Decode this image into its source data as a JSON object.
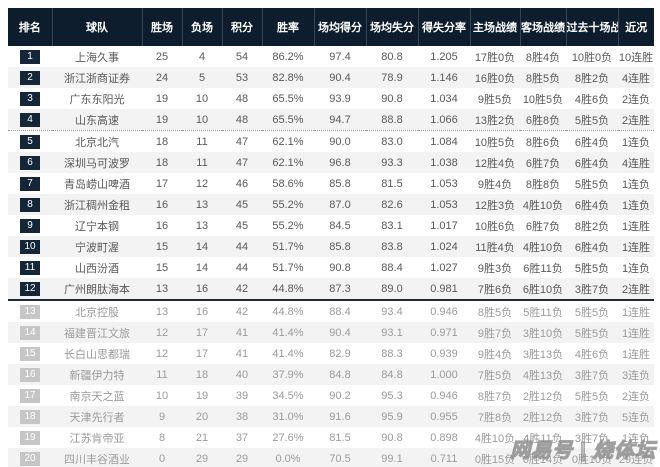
{
  "watermark": "网易号 | 烧体坛",
  "colors": {
    "header_bg": "#0d1d2d",
    "rank_badge_top": "#142638",
    "rank_badge_lower": "#c6c6c6",
    "row_alt_bg": "#f3f3f3",
    "divider_solid": "#1c2b3a"
  },
  "table": {
    "dotted_divider_after_rank": 4,
    "solid_divider_after_rank": 12,
    "columns": [
      {
        "key": "rank",
        "label": "排名"
      },
      {
        "key": "team",
        "label": "球队"
      },
      {
        "key": "wins",
        "label": "胜场"
      },
      {
        "key": "losses",
        "label": "负场"
      },
      {
        "key": "points",
        "label": "积分"
      },
      {
        "key": "win_rate",
        "label": "胜率"
      },
      {
        "key": "avg_points_for",
        "label": "场均得分"
      },
      {
        "key": "avg_points_against",
        "label": "场均失分"
      },
      {
        "key": "point_ratio",
        "label": "得失分率"
      },
      {
        "key": "home_record",
        "label": "主场战绩"
      },
      {
        "key": "away_record",
        "label": "客场战绩"
      },
      {
        "key": "last10_record",
        "label": "过去十场战绩"
      },
      {
        "key": "streak",
        "label": "近况"
      }
    ],
    "rows": [
      {
        "rank": 1,
        "tier": "top",
        "team": "上海久事",
        "wins": 25,
        "losses": 4,
        "points": 54,
        "win_rate": "86.2%",
        "avg_points_for": "97.4",
        "avg_points_against": "80.8",
        "point_ratio": "1.205",
        "home_record": "17胜0负",
        "away_record": "8胜4负",
        "last10_record": "10胜0负",
        "streak": "10连胜"
      },
      {
        "rank": 2,
        "tier": "top",
        "team": "浙江浙商证券",
        "wins": 24,
        "losses": 5,
        "points": 53,
        "win_rate": "82.8%",
        "avg_points_for": "90.4",
        "avg_points_against": "78.9",
        "point_ratio": "1.146",
        "home_record": "16胜0负",
        "away_record": "8胜5负",
        "last10_record": "8胜2负",
        "streak": "4连胜"
      },
      {
        "rank": 3,
        "tier": "top",
        "team": "广东东阳光",
        "wins": 19,
        "losses": 10,
        "points": 48,
        "win_rate": "65.5%",
        "avg_points_for": "93.9",
        "avg_points_against": "90.8",
        "point_ratio": "1.034",
        "home_record": "9胜5负",
        "away_record": "10胜5负",
        "last10_record": "4胜6负",
        "streak": "2连负"
      },
      {
        "rank": 4,
        "tier": "top",
        "team": "山东高速",
        "wins": 19,
        "losses": 10,
        "points": 48,
        "win_rate": "65.5%",
        "avg_points_for": "94.7",
        "avg_points_against": "88.8",
        "point_ratio": "1.066",
        "home_record": "13胜2负",
        "away_record": "6胜8负",
        "last10_record": "5胜5负",
        "streak": "2连胜"
      },
      {
        "rank": 5,
        "tier": "top",
        "team": "北京北汽",
        "wins": 18,
        "losses": 11,
        "points": 47,
        "win_rate": "62.1%",
        "avg_points_for": "90.0",
        "avg_points_against": "83.0",
        "point_ratio": "1.084",
        "home_record": "10胜5负",
        "away_record": "8胜6负",
        "last10_record": "6胜4负",
        "streak": "1连负"
      },
      {
        "rank": 6,
        "tier": "top",
        "team": "深圳马可波罗",
        "wins": 18,
        "losses": 11,
        "points": 47,
        "win_rate": "62.1%",
        "avg_points_for": "96.8",
        "avg_points_against": "93.3",
        "point_ratio": "1.038",
        "home_record": "12胜4负",
        "away_record": "6胜7负",
        "last10_record": "6胜4负",
        "streak": "4连胜"
      },
      {
        "rank": 7,
        "tier": "top",
        "team": "青岛崂山啤酒",
        "wins": 17,
        "losses": 12,
        "points": 46,
        "win_rate": "58.6%",
        "avg_points_for": "85.8",
        "avg_points_against": "81.5",
        "point_ratio": "1.053",
        "home_record": "9胜4负",
        "away_record": "8胜8负",
        "last10_record": "5胜5负",
        "streak": "1连负"
      },
      {
        "rank": 8,
        "tier": "top",
        "team": "浙江稠州金租",
        "wins": 16,
        "losses": 13,
        "points": 45,
        "win_rate": "55.2%",
        "avg_points_for": "87.0",
        "avg_points_against": "82.6",
        "point_ratio": "1.053",
        "home_record": "12胜3负",
        "away_record": "4胜10负",
        "last10_record": "6胜4负",
        "streak": "1连负"
      },
      {
        "rank": 9,
        "tier": "top",
        "team": "辽宁本钢",
        "wins": 16,
        "losses": 13,
        "points": 45,
        "win_rate": "55.2%",
        "avg_points_for": "84.5",
        "avg_points_against": "83.1",
        "point_ratio": "1.017",
        "home_record": "10胜6负",
        "away_record": "6胜7负",
        "last10_record": "8胜2负",
        "streak": "1连胜"
      },
      {
        "rank": 10,
        "tier": "top",
        "team": "宁波町渥",
        "wins": 15,
        "losses": 14,
        "points": 44,
        "win_rate": "51.7%",
        "avg_points_for": "85.8",
        "avg_points_against": "83.8",
        "point_ratio": "1.024",
        "home_record": "11胜4负",
        "away_record": "4胜10负",
        "last10_record": "6胜4负",
        "streak": "1连胜"
      },
      {
        "rank": 11,
        "tier": "top",
        "team": "山西汾酒",
        "wins": 15,
        "losses": 14,
        "points": 44,
        "win_rate": "51.7%",
        "avg_points_for": "90.8",
        "avg_points_against": "88.4",
        "point_ratio": "1.027",
        "home_record": "9胜3负",
        "away_record": "6胜11负",
        "last10_record": "5胜5负",
        "streak": "1连负"
      },
      {
        "rank": 12,
        "tier": "top",
        "team": "广州朗肽海本",
        "wins": 13,
        "losses": 16,
        "points": 42,
        "win_rate": "44.8%",
        "avg_points_for": "87.3",
        "avg_points_against": "89.0",
        "point_ratio": "0.981",
        "home_record": "7胜6负",
        "away_record": "6胜10负",
        "last10_record": "3胜7负",
        "streak": "2连胜"
      },
      {
        "rank": 13,
        "tier": "lower",
        "team": "北京控股",
        "wins": 13,
        "losses": 16,
        "points": 42,
        "win_rate": "44.8%",
        "avg_points_for": "88.4",
        "avg_points_against": "93.4",
        "point_ratio": "0.946",
        "home_record": "8胜5负",
        "away_record": "5胜11负",
        "last10_record": "5胜5负",
        "streak": "1连胜"
      },
      {
        "rank": 14,
        "tier": "lower",
        "team": "福建晋江文旅",
        "wins": 12,
        "losses": 17,
        "points": 41,
        "win_rate": "41.4%",
        "avg_points_for": "90.4",
        "avg_points_against": "93.1",
        "point_ratio": "0.971",
        "home_record": "9胜7负",
        "away_record": "3胜10负",
        "last10_record": "5胜5负",
        "streak": "1连胜"
      },
      {
        "rank": 15,
        "tier": "lower",
        "team": "长白山思都瑞",
        "wins": 12,
        "losses": 17,
        "points": 41,
        "win_rate": "41.4%",
        "avg_points_for": "82.9",
        "avg_points_against": "88.3",
        "point_ratio": "0.939",
        "home_record": "9胜4负",
        "away_record": "3胜13负",
        "last10_record": "4胜6负",
        "streak": "1连胜"
      },
      {
        "rank": 16,
        "tier": "lower",
        "team": "新疆伊力特",
        "wins": 11,
        "losses": 18,
        "points": 40,
        "win_rate": "37.9%",
        "avg_points_for": "84.8",
        "avg_points_against": "84.8",
        "point_ratio": "1.000",
        "home_record": "7胜5负",
        "away_record": "4胜13负",
        "last10_record": "3胜7负",
        "streak": "3连负"
      },
      {
        "rank": 17,
        "tier": "lower",
        "team": "南京天之蓝",
        "wins": 10,
        "losses": 19,
        "points": 39,
        "win_rate": "34.5%",
        "avg_points_for": "90.2",
        "avg_points_against": "95.3",
        "point_ratio": "0.946",
        "home_record": "8胜7负",
        "away_record": "2胜12负",
        "last10_record": "5胜5负",
        "streak": "2连负"
      },
      {
        "rank": 18,
        "tier": "lower",
        "team": "天津先行者",
        "wins": 9,
        "losses": 20,
        "points": 38,
        "win_rate": "31.0%",
        "avg_points_for": "91.6",
        "avg_points_against": "95.9",
        "point_ratio": "0.955",
        "home_record": "7胜8负",
        "away_record": "2胜12负",
        "last10_record": "3胜7负",
        "streak": "5连负"
      },
      {
        "rank": 19,
        "tier": "lower",
        "team": "江苏肯帝亚",
        "wins": 8,
        "losses": 21,
        "points": 37,
        "win_rate": "27.6%",
        "avg_points_for": "81.5",
        "avg_points_against": "90.8",
        "point_ratio": "0.898",
        "home_record": "4胜10负",
        "away_record": "4胜11负",
        "last10_record": "3胜7负",
        "streak": "1连负"
      },
      {
        "rank": 20,
        "tier": "lower",
        "team": "四川丰谷酒业",
        "wins": 0,
        "losses": 29,
        "points": 29,
        "win_rate": "0.0%",
        "avg_points_for": "70.5",
        "avg_points_against": "99.1",
        "point_ratio": "0.711",
        "home_record": "0胜15负",
        "away_record": "0胜14负",
        "last10_record": "0胜10负",
        "streak": "29连负"
      }
    ]
  }
}
